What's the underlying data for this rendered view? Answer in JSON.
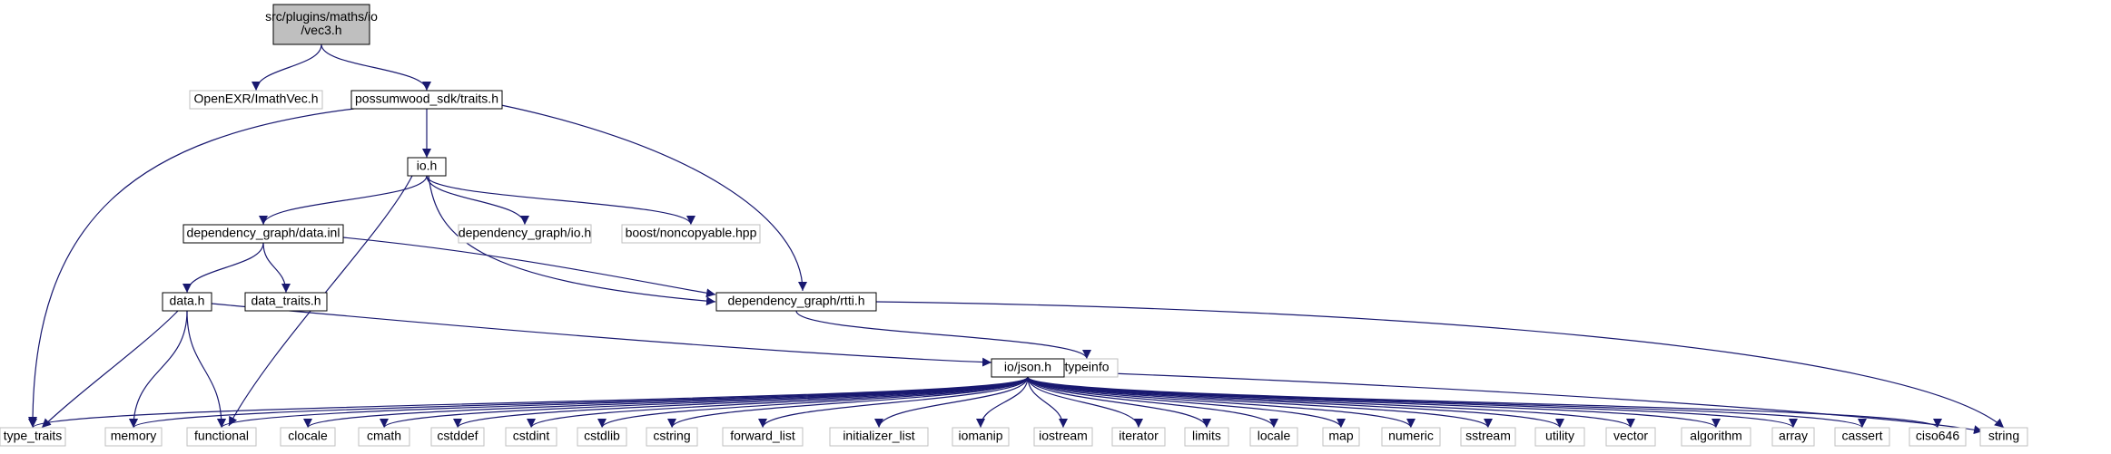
{
  "graph": {
    "nodes": [
      {
        "id": "vec3",
        "label_lines": [
          "src/plugins/maths/io",
          "/vec3.h"
        ],
        "style": "root"
      },
      {
        "id": "imathvec",
        "label_lines": [
          "OpenEXR/ImathVec.h"
        ],
        "style": "external"
      },
      {
        "id": "traits",
        "label_lines": [
          "possumwood_sdk/traits.h"
        ],
        "style": "internal"
      },
      {
        "id": "io",
        "label_lines": [
          "io.h"
        ],
        "style": "internal"
      },
      {
        "id": "datainl",
        "label_lines": [
          "dependency_graph/data.inl"
        ],
        "style": "internal"
      },
      {
        "id": "dgio",
        "label_lines": [
          "dependency_graph/io.h"
        ],
        "style": "external"
      },
      {
        "id": "noncopy",
        "label_lines": [
          "boost/noncopyable.hpp"
        ],
        "style": "external"
      },
      {
        "id": "datah",
        "label_lines": [
          "data.h"
        ],
        "style": "internal"
      },
      {
        "id": "datatraits",
        "label_lines": [
          "data_traits.h"
        ],
        "style": "internal"
      },
      {
        "id": "rtti",
        "label_lines": [
          "dependency_graph/rtti.h"
        ],
        "style": "internal"
      },
      {
        "id": "typeinfo",
        "label_lines": [
          "typeinfo"
        ],
        "style": "external"
      },
      {
        "id": "json",
        "label_lines": [
          "io/json.h"
        ],
        "style": "internal"
      },
      {
        "id": "type_traits",
        "label_lines": [
          "type_traits"
        ],
        "style": "external"
      },
      {
        "id": "memory",
        "label_lines": [
          "memory"
        ],
        "style": "external"
      },
      {
        "id": "functional",
        "label_lines": [
          "functional"
        ],
        "style": "external"
      },
      {
        "id": "clocale",
        "label_lines": [
          "clocale"
        ],
        "style": "external"
      },
      {
        "id": "cmath",
        "label_lines": [
          "cmath"
        ],
        "style": "external"
      },
      {
        "id": "cstddef",
        "label_lines": [
          "cstddef"
        ],
        "style": "external"
      },
      {
        "id": "cstdint",
        "label_lines": [
          "cstdint"
        ],
        "style": "external"
      },
      {
        "id": "cstdlib",
        "label_lines": [
          "cstdlib"
        ],
        "style": "external"
      },
      {
        "id": "cstring",
        "label_lines": [
          "cstring"
        ],
        "style": "external"
      },
      {
        "id": "forward_list",
        "label_lines": [
          "forward_list"
        ],
        "style": "external"
      },
      {
        "id": "initializer_list",
        "label_lines": [
          "initializer_list"
        ],
        "style": "external"
      },
      {
        "id": "iomanip",
        "label_lines": [
          "iomanip"
        ],
        "style": "external"
      },
      {
        "id": "iostream",
        "label_lines": [
          "iostream"
        ],
        "style": "external"
      },
      {
        "id": "iterator",
        "label_lines": [
          "iterator"
        ],
        "style": "external"
      },
      {
        "id": "limits",
        "label_lines": [
          "limits"
        ],
        "style": "external"
      },
      {
        "id": "locale",
        "label_lines": [
          "locale"
        ],
        "style": "external"
      },
      {
        "id": "map",
        "label_lines": [
          "map"
        ],
        "style": "external"
      },
      {
        "id": "numeric",
        "label_lines": [
          "numeric"
        ],
        "style": "external"
      },
      {
        "id": "sstream",
        "label_lines": [
          "sstream"
        ],
        "style": "external"
      },
      {
        "id": "utility",
        "label_lines": [
          "utility"
        ],
        "style": "external"
      },
      {
        "id": "vector",
        "label_lines": [
          "vector"
        ],
        "style": "external"
      },
      {
        "id": "algorithm",
        "label_lines": [
          "algorithm"
        ],
        "style": "external"
      },
      {
        "id": "array",
        "label_lines": [
          "array"
        ],
        "style": "external"
      },
      {
        "id": "cassert",
        "label_lines": [
          "cassert"
        ],
        "style": "external"
      },
      {
        "id": "ciso646",
        "label_lines": [
          "ciso646"
        ],
        "style": "external"
      },
      {
        "id": "string",
        "label_lines": [
          "string"
        ],
        "style": "external"
      }
    ],
    "edges": [
      [
        "vec3",
        "imathvec"
      ],
      [
        "vec3",
        "traits"
      ],
      [
        "traits",
        "type_traits"
      ],
      [
        "traits",
        "io"
      ],
      [
        "traits",
        "rtti"
      ],
      [
        "io",
        "datainl"
      ],
      [
        "io",
        "dgio"
      ],
      [
        "io",
        "noncopy"
      ],
      [
        "io",
        "functional"
      ],
      [
        "io",
        "rtti"
      ],
      [
        "datainl",
        "datah"
      ],
      [
        "datainl",
        "datatraits"
      ],
      [
        "datainl",
        "rtti"
      ],
      [
        "datah",
        "type_traits"
      ],
      [
        "datah",
        "memory"
      ],
      [
        "datah",
        "functional"
      ],
      [
        "datah",
        "json"
      ],
      [
        "rtti",
        "typeinfo"
      ],
      [
        "rtti",
        "string"
      ],
      [
        "json",
        "type_traits"
      ],
      [
        "json",
        "memory"
      ],
      [
        "json",
        "functional"
      ],
      [
        "json",
        "clocale"
      ],
      [
        "json",
        "cmath"
      ],
      [
        "json",
        "cstddef"
      ],
      [
        "json",
        "cstdint"
      ],
      [
        "json",
        "cstdlib"
      ],
      [
        "json",
        "cstring"
      ],
      [
        "json",
        "forward_list"
      ],
      [
        "json",
        "initializer_list"
      ],
      [
        "json",
        "iomanip"
      ],
      [
        "json",
        "iostream"
      ],
      [
        "json",
        "iterator"
      ],
      [
        "json",
        "limits"
      ],
      [
        "json",
        "locale"
      ],
      [
        "json",
        "map"
      ],
      [
        "json",
        "numeric"
      ],
      [
        "json",
        "sstream"
      ],
      [
        "json",
        "utility"
      ],
      [
        "json",
        "vector"
      ],
      [
        "json",
        "algorithm"
      ],
      [
        "json",
        "array"
      ],
      [
        "json",
        "cassert"
      ],
      [
        "json",
        "ciso646"
      ],
      [
        "json",
        "string"
      ]
    ],
    "colors": {
      "edge": "#191970",
      "root_fill": "#bfbfbf",
      "root_border": "#000000",
      "internal_border": "#000000",
      "external_border": "#bfbfbf",
      "node_fill": "#ffffff"
    }
  }
}
